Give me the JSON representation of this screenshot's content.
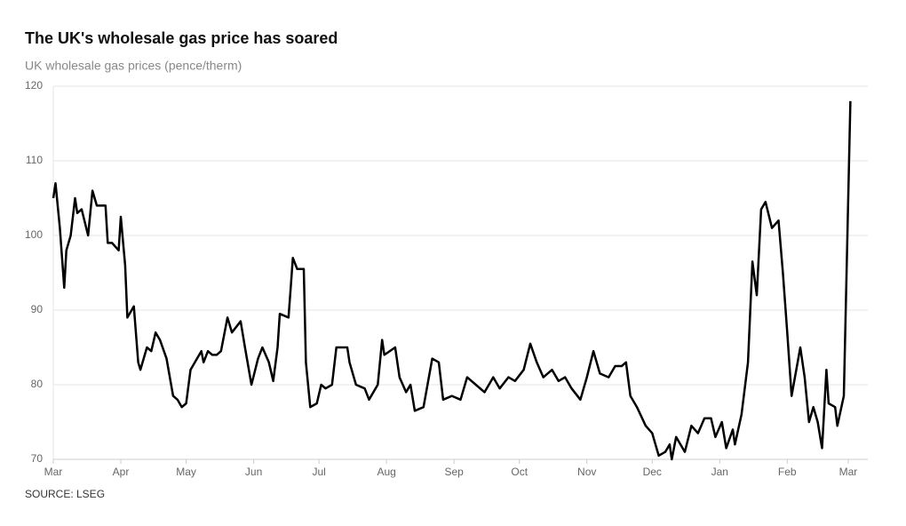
{
  "chart_data": {
    "type": "line",
    "title": "The UK's wholesale gas price has soared",
    "subtitle": "UK wholesale gas prices (pence/therm)",
    "source": "SOURCE: LSEG",
    "x": [
      0,
      1,
      3,
      5,
      6,
      8,
      10,
      11,
      13,
      16,
      18,
      20,
      24,
      25,
      27,
      30,
      31,
      33,
      34,
      37,
      39,
      40,
      43,
      45,
      47,
      49,
      52,
      55,
      57,
      59,
      61,
      63,
      66,
      68,
      69,
      71,
      73,
      75,
      77,
      80,
      82,
      86,
      88,
      91,
      94,
      96,
      99,
      101,
      103,
      104,
      108,
      109,
      110,
      112,
      115,
      116,
      118,
      121,
      123,
      125,
      128,
      130,
      135,
      136,
      139,
      143,
      145,
      149,
      151,
      152,
      157,
      159,
      162,
      164,
      166,
      170,
      174,
      177,
      179,
      183,
      187,
      190,
      194,
      198,
      202,
      205,
      209,
      212,
      216,
      219,
      222,
      225,
      229,
      232,
      235,
      238,
      242,
      245,
      248,
      251,
      255,
      258,
      261,
      263,
      265,
      268,
      272,
      275,
      278,
      281,
      283,
      284,
      286,
      290,
      293,
      296,
      299,
      302,
      304,
      307,
      309,
      312,
      313,
      316,
      319,
      321,
      323,
      325,
      327,
      330,
      333,
      335,
      337,
      339,
      343,
      345,
      347,
      349,
      351,
      353,
      355,
      356,
      359,
      360,
      363,
      366
    ],
    "series": [
      {
        "name": "UK wholesale gas price",
        "color": "#000000",
        "values": [
          105,
          107,
          101,
          93,
          98,
          100,
          105,
          103,
          103.5,
          100,
          106,
          104,
          104,
          99,
          99,
          98,
          102.5,
          96,
          89,
          90.5,
          83,
          82,
          85,
          84.5,
          87,
          86,
          83.5,
          78.5,
          78,
          77,
          77.5,
          82,
          83.5,
          84.5,
          83,
          84.5,
          84,
          84,
          84.5,
          89,
          87,
          88.5,
          85,
          80,
          83.5,
          85,
          83,
          80.5,
          85,
          89.5,
          89,
          93,
          97,
          95.5,
          95.5,
          83,
          77,
          77.5,
          80,
          79.5,
          80,
          85,
          85,
          83,
          80,
          79.5,
          78,
          80,
          86,
          84,
          85,
          81,
          79,
          80,
          76.5,
          77,
          83.5,
          83,
          78,
          78.5,
          78,
          81,
          80,
          79,
          81,
          79.5,
          81,
          80.5,
          82,
          85.5,
          83,
          81,
          82,
          80.5,
          81,
          79.5,
          78,
          81,
          84.5,
          81.5,
          81,
          82.5,
          82.5,
          83,
          78.5,
          77,
          74.5,
          73.5,
          70.5,
          71,
          72,
          70,
          73,
          71,
          74.5,
          73.5,
          75.5,
          75.5,
          73,
          75,
          71.5,
          74,
          72,
          76,
          83,
          96.5,
          92,
          103.5,
          104.5,
          101,
          102,
          95,
          87,
          78.5,
          85,
          81,
          75,
          77,
          75,
          71.5,
          82,
          77.5,
          77,
          74.5,
          78.5,
          118
        ]
      }
    ],
    "xlim": [
      0,
      374
    ],
    "xticks": [
      {
        "value": 0,
        "label": "Mar"
      },
      {
        "value": 31,
        "label": "Apr"
      },
      {
        "value": 61,
        "label": "May"
      },
      {
        "value": 92,
        "label": "Jun"
      },
      {
        "value": 122,
        "label": "Jul"
      },
      {
        "value": 153,
        "label": "Aug"
      },
      {
        "value": 184,
        "label": "Sep"
      },
      {
        "value": 214,
        "label": "Oct"
      },
      {
        "value": 245,
        "label": "Nov"
      },
      {
        "value": 275,
        "label": "Dec"
      },
      {
        "value": 306,
        "label": "Jan"
      },
      {
        "value": 337,
        "label": "Feb"
      },
      {
        "value": 365,
        "label": "Mar"
      }
    ],
    "ylim": [
      70,
      120
    ],
    "yticks": [
      70,
      80,
      90,
      100,
      110,
      120
    ],
    "grid": true
  }
}
